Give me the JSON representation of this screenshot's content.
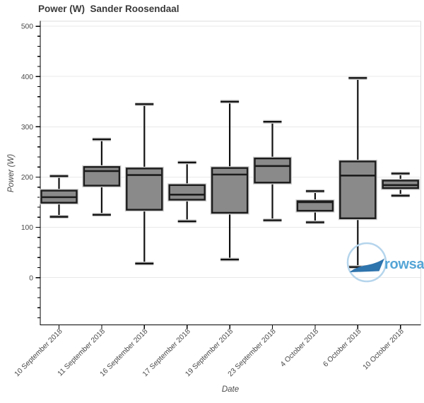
{
  "page": {
    "background": "#ffffff"
  },
  "chart_data": {
    "type": "boxplot",
    "title": "Power (W)  Sander Roosendaal",
    "xlabel": "Date",
    "ylabel": "Power (W)",
    "ylim": [
      -94,
      510
    ],
    "yticks": [
      0,
      100,
      200,
      300,
      400,
      500
    ],
    "y_minor_step": 20,
    "grid": true,
    "legend": "none",
    "categories": [
      "10 September 2018",
      "11 September 2018",
      "16 September 2018",
      "17 September 2018",
      "19 September 2018",
      "23 September 2018",
      "4 October 2018",
      "6 October 2018",
      "10 October 2018"
    ],
    "boxes": [
      {
        "label": "10 September 2018",
        "low": 121,
        "q1": 149,
        "median": 160,
        "q3": 173,
        "high": 202
      },
      {
        "label": "11 September 2018",
        "low": 125,
        "q1": 183,
        "median": 212,
        "q3": 220,
        "high": 275
      },
      {
        "label": "16 September 2018",
        "low": 28,
        "q1": 135,
        "median": 204,
        "q3": 217,
        "high": 345
      },
      {
        "label": "17 September 2018",
        "low": 112,
        "q1": 155,
        "median": 165,
        "q3": 184,
        "high": 229
      },
      {
        "label": "19 September 2018",
        "low": 36,
        "q1": 129,
        "median": 205,
        "q3": 218,
        "high": 350
      },
      {
        "label": "23 September 2018",
        "low": 114,
        "q1": 189,
        "median": 222,
        "q3": 237,
        "high": 310
      },
      {
        "label": "4 October 2018",
        "low": 110,
        "q1": 133,
        "median": 150,
        "q3": 152,
        "high": 172
      },
      {
        "label": "6 October 2018",
        "low": 21,
        "q1": 118,
        "median": 203,
        "q3": 231,
        "high": 397
      },
      {
        "label": "10 October 2018",
        "low": 163,
        "q1": 178,
        "median": 184,
        "q3": 193,
        "high": 207
      }
    ],
    "colors": {
      "box_fill": "#8a8a8a",
      "box_border": "#1c1c1c",
      "halo": "#cccccc",
      "whisker": "#111111",
      "grid": "#e9e9e9",
      "axis": "#000000",
      "tick_label": "#4a4a4a",
      "title": "#3a3a3a"
    }
  },
  "watermark": {
    "text": "rowsandall",
    "circle_color": "#b5d5ec",
    "boat_color": "#2e74ad",
    "text_color": "#55a5d6"
  }
}
